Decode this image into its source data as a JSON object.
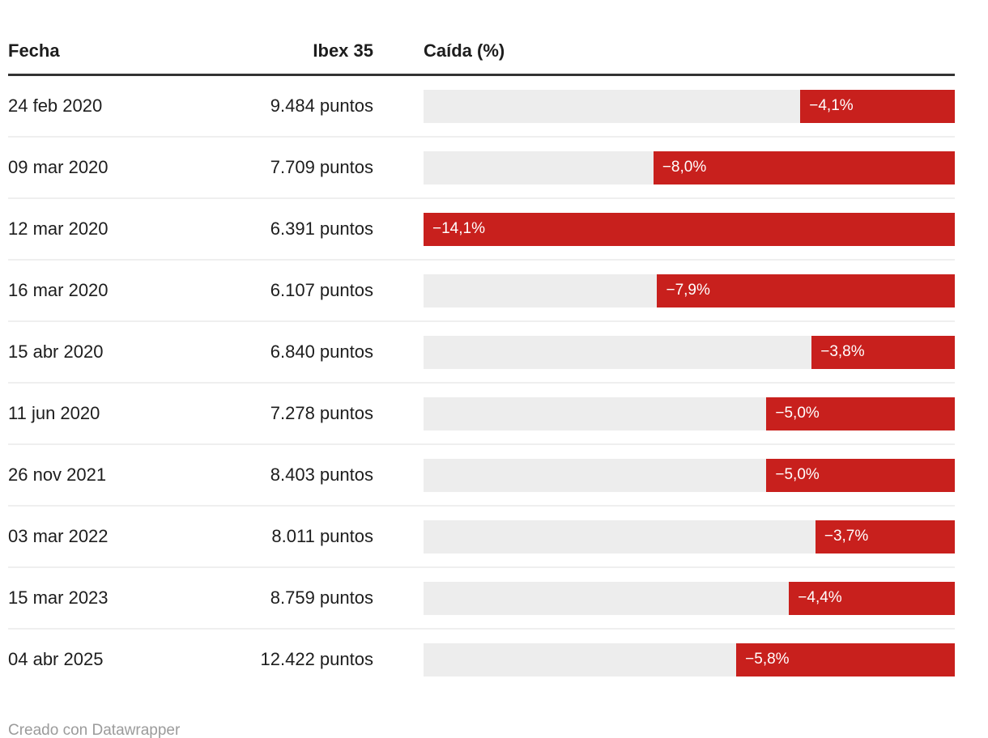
{
  "table": {
    "columns": [
      "Fecha",
      "Ibex 35",
      "Caída (%)"
    ],
    "rows": [
      {
        "fecha": "24 feb 2020",
        "ibex": "9.484 puntos",
        "caida_label": "−4,1%",
        "caida_value": -4.1
      },
      {
        "fecha": "09 mar 2020",
        "ibex": "7.709 puntos",
        "caida_label": "−8,0%",
        "caida_value": -8.0
      },
      {
        "fecha": "12 mar 2020",
        "ibex": "6.391 puntos",
        "caida_label": "−14,1%",
        "caida_value": -14.1
      },
      {
        "fecha": "16 mar 2020",
        "ibex": "6.107 puntos",
        "caida_label": "−7,9%",
        "caida_value": -7.9
      },
      {
        "fecha": "15 abr 2020",
        "ibex": "6.840 puntos",
        "caida_label": "−3,8%",
        "caida_value": -3.8
      },
      {
        "fecha": "11 jun 2020",
        "ibex": "7.278 puntos",
        "caida_label": "−5,0%",
        "caida_value": -5.0
      },
      {
        "fecha": "26 nov 2021",
        "ibex": "8.403 puntos",
        "caida_label": "−5,0%",
        "caida_value": -5.0
      },
      {
        "fecha": "03 mar 2022",
        "ibex": "8.011 puntos",
        "caida_label": "−3,7%",
        "caida_value": -3.7
      },
      {
        "fecha": "15 mar 2023",
        "ibex": "8.759 puntos",
        "caida_label": "−4,4%",
        "caida_value": -4.4
      },
      {
        "fecha": "04 abr 2025",
        "ibex": "12.422 puntos",
        "caida_label": "−5,8%",
        "caida_value": -5.8
      }
    ]
  },
  "footer": {
    "credit": "Creado con Datawrapper"
  },
  "colors": {
    "bar_red": "#c8201d",
    "bar_track_gray": "#ededed",
    "header_rule": "#333333",
    "row_separator": "#efefef",
    "text": "#1d1d1d",
    "bar_label": "#ffffff",
    "footer_text": "#9b9b9b"
  },
  "chart_data": {
    "type": "bar",
    "orientation": "horizontal",
    "title": "",
    "columns": [
      "Fecha",
      "Ibex 35",
      "Caída (%)"
    ],
    "categories": [
      "24 feb 2020",
      "09 mar 2020",
      "12 mar 2020",
      "16 mar 2020",
      "15 abr 2020",
      "11 jun 2020",
      "26 nov 2021",
      "03 mar 2022",
      "15 mar 2023",
      "04 abr 2025"
    ],
    "series": [
      {
        "name": "Ibex 35 (puntos)",
        "values": [
          9484,
          7709,
          6391,
          6107,
          6840,
          7278,
          8403,
          8011,
          8759,
          12422
        ]
      },
      {
        "name": "Caída (%)",
        "values": [
          -4.1,
          -8.0,
          -14.1,
          -7.9,
          -3.8,
          -5.0,
          -5.0,
          -3.7,
          -4.4,
          -5.8
        ]
      }
    ],
    "bar_value_labels": [
      "−4,1%",
      "−8,0%",
      "−14,1%",
      "−7,9%",
      "−3,8%",
      "−5,0%",
      "−5,0%",
      "−3,7%",
      "−4,4%",
      "−5,8%"
    ],
    "xlim": [
      0,
      -14.1
    ],
    "bars_right_aligned": true,
    "grid": false,
    "legend": "none",
    "credit": "Creado con Datawrapper"
  }
}
